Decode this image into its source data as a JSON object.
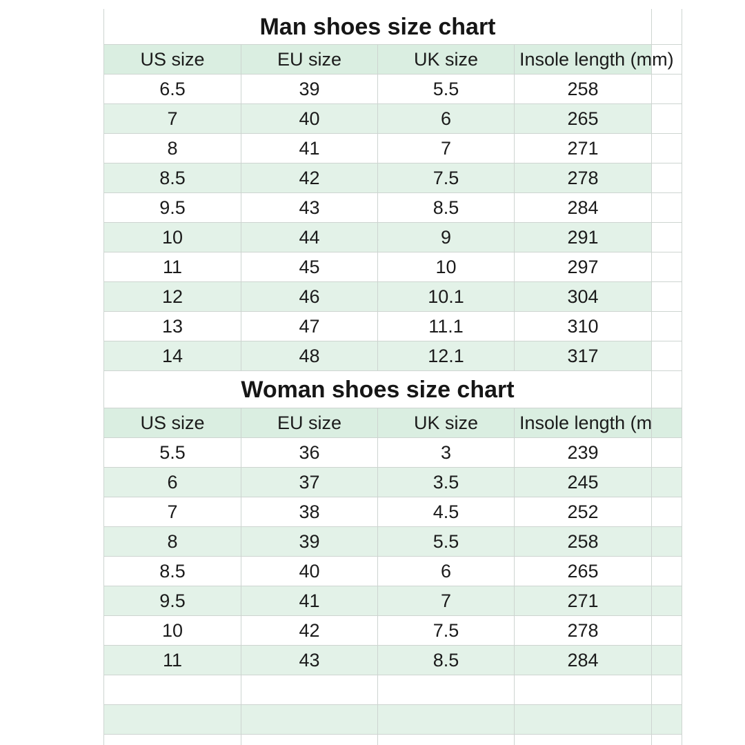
{
  "chart_data": [
    {
      "type": "table",
      "title": "Man shoes size chart",
      "columns": [
        "US size",
        "EU size",
        "UK size",
        "Insole length (mm)"
      ],
      "rows": [
        [
          "6.5",
          "39",
          "5.5",
          "258"
        ],
        [
          "7",
          "40",
          "6",
          "265"
        ],
        [
          "8",
          "41",
          "7",
          "271"
        ],
        [
          "8.5",
          "42",
          "7.5",
          "278"
        ],
        [
          "9.5",
          "43",
          "8.5",
          "284"
        ],
        [
          "10",
          "44",
          "9",
          "291"
        ],
        [
          "11",
          "45",
          "10",
          "297"
        ],
        [
          "12",
          "46",
          "10.1",
          "304"
        ],
        [
          "13",
          "47",
          "11.1",
          "310"
        ],
        [
          "14",
          "48",
          "12.1",
          "317"
        ]
      ],
      "trailing_empty_rows": 0,
      "band_includes_trailing_column": false,
      "banding": "alternating rows, first row white"
    },
    {
      "type": "table",
      "title": "Woman shoes size chart",
      "columns": [
        "US size",
        "EU size",
        "UK size",
        "Insole length (mm)"
      ],
      "rows": [
        [
          "5.5",
          "36",
          "3",
          "239"
        ],
        [
          "6",
          "37",
          "3.5",
          "245"
        ],
        [
          "7",
          "38",
          "4.5",
          "252"
        ],
        [
          "8",
          "39",
          "5.5",
          "258"
        ],
        [
          "8.5",
          "40",
          "6",
          "265"
        ],
        [
          "9.5",
          "41",
          "7",
          "271"
        ],
        [
          "10",
          "42",
          "7.5",
          "278"
        ],
        [
          "11",
          "43",
          "8.5",
          "284"
        ]
      ],
      "trailing_empty_rows": 2,
      "band_includes_trailing_column": true,
      "banding": "alternating rows, first row white"
    }
  ],
  "colors": {
    "background": "#ffffff",
    "band_green": "#e3f2e8",
    "header_green": "#daeee1",
    "gridline": "#cdd4d0",
    "text": "#1b1b1b"
  }
}
